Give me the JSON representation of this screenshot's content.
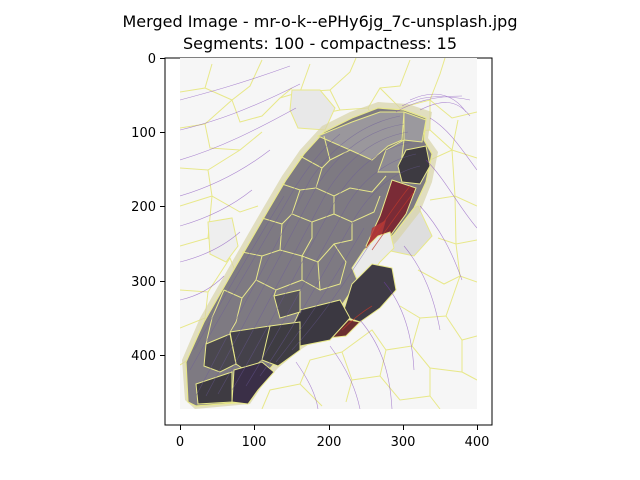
{
  "figure": {
    "title": "Merged Image - mr-o-k--ePHy6jg_7c-unsplash.jpg",
    "subtitle": "Segments: 100 - compactness: 15"
  },
  "axes": {
    "x_ticks": [
      "0",
      "100",
      "200",
      "300",
      "400"
    ],
    "y_ticks": [
      "0",
      "100",
      "200",
      "300",
      "400"
    ]
  },
  "colors": {
    "boundary": "#e8e88a",
    "contour": "#7b3fb8",
    "highlight": "#c0392b",
    "dark_segment": "#3c3a40",
    "mid_segment": "#7a767d",
    "light_segment": "#f5f5f5"
  }
}
